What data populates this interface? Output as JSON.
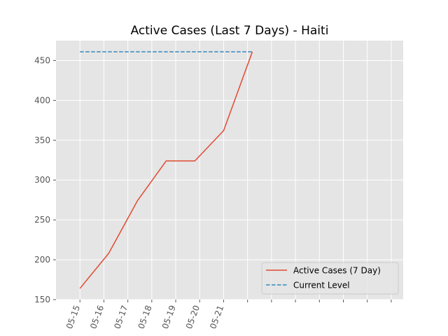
{
  "chart_data": {
    "type": "line",
    "title": "Active Cases (Last 7 Days) - Haiti",
    "xlabel": "",
    "ylabel": "",
    "x_tick_labels": [
      "05-15",
      "05-16",
      "05-17",
      "05-18",
      "05-19",
      "05-20",
      "05-21",
      "",
      "",
      "",
      "",
      "",
      "",
      ""
    ],
    "y_ticks": [
      150,
      200,
      250,
      300,
      350,
      400,
      450
    ],
    "ylim": [
      150,
      475
    ],
    "xlim": [
      -0.5,
      6.75
    ],
    "series": [
      {
        "name": "Active Cases (7 Day)",
        "style": "solid",
        "color": "#E24A33",
        "x": [
          0,
          1.2,
          2.4,
          3.6,
          4.8,
          6.0,
          7.2
        ],
        "values": [
          164,
          208,
          274,
          324,
          324,
          362,
          461
        ]
      },
      {
        "name": "Current Level",
        "style": "dashed",
        "color": "#348ABD",
        "x": [
          0,
          7.2
        ],
        "values": [
          461,
          461
        ]
      }
    ],
    "grid": true,
    "legend_position": "lower-right",
    "background_color": "#E5E5E5"
  }
}
